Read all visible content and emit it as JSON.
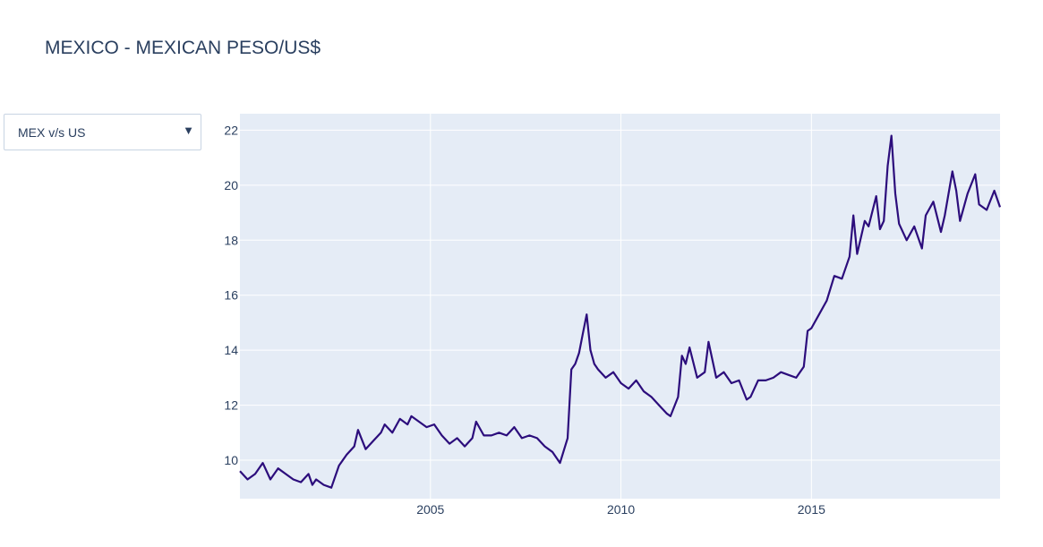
{
  "title": "MEXICO - MEXICAN PESO/US$",
  "dropdown": {
    "selected": "MEX v/s US",
    "arrow_icon": "triangle-down-icon"
  },
  "colors": {
    "line": "#2c0d7c",
    "plot_bg": "#e5ecf6",
    "grid": "#ffffff",
    "text": "#2a3f5f"
  },
  "chart_data": {
    "type": "line",
    "x_tick_labels": [
      "2005",
      "2010",
      "2015"
    ],
    "y_tick_labels": [
      "10",
      "12",
      "14",
      "16",
      "18",
      "20",
      "22"
    ],
    "xlim": [
      2000.0,
      2019.95
    ],
    "ylim": [
      8.6,
      22.6
    ],
    "grid": true,
    "series": [
      {
        "x": [
          2000.0,
          2000.2,
          2000.4,
          2000.6,
          2000.8,
          2000.9,
          2001.0,
          2001.2,
          2001.4,
          2001.6,
          2001.8,
          2001.9,
          2002.0,
          2002.2,
          2002.4,
          2002.6,
          2002.8,
          2003.0,
          2003.1,
          2003.3,
          2003.5,
          2003.7,
          2003.8,
          2004.0,
          2004.2,
          2004.4,
          2004.5,
          2004.7,
          2004.9,
          2005.1,
          2005.3,
          2005.5,
          2005.7,
          2005.9,
          2006.1,
          2006.2,
          2006.4,
          2006.6,
          2006.8,
          2007.0,
          2007.2,
          2007.4,
          2007.6,
          2007.8,
          2008.0,
          2008.2,
          2008.4,
          2008.6,
          2008.7,
          2008.8,
          2008.9,
          2009.0,
          2009.1,
          2009.2,
          2009.3,
          2009.4,
          2009.6,
          2009.8,
          2010.0,
          2010.2,
          2010.4,
          2010.6,
          2010.8,
          2011.0,
          2011.2,
          2011.3,
          2011.5,
          2011.6,
          2011.7,
          2011.8,
          2012.0,
          2012.2,
          2012.3,
          2012.5,
          2012.7,
          2012.9,
          2013.1,
          2013.3,
          2013.4,
          2013.6,
          2013.8,
          2014.0,
          2014.2,
          2014.4,
          2014.6,
          2014.8,
          2014.9,
          2015.0,
          2015.2,
          2015.4,
          2015.6,
          2015.8,
          2016.0,
          2016.1,
          2016.2,
          2016.4,
          2016.5,
          2016.7,
          2016.8,
          2016.9,
          2017.0,
          2017.1,
          2017.2,
          2017.3,
          2017.5,
          2017.7,
          2017.9,
          2018.0,
          2018.2,
          2018.4,
          2018.5,
          2018.7,
          2018.8,
          2018.9,
          2019.1,
          2019.3,
          2019.4,
          2019.6,
          2019.8,
          2019.95
        ],
        "y": [
          9.6,
          9.3,
          9.5,
          9.9,
          9.3,
          9.5,
          9.7,
          9.5,
          9.3,
          9.2,
          9.5,
          9.1,
          9.3,
          9.1,
          9.0,
          9.8,
          10.2,
          10.5,
          11.1,
          10.4,
          10.7,
          11.0,
          11.3,
          11.0,
          11.5,
          11.3,
          11.6,
          11.4,
          11.2,
          11.3,
          10.9,
          10.6,
          10.8,
          10.5,
          10.8,
          11.4,
          10.9,
          10.9,
          11.0,
          10.9,
          11.2,
          10.8,
          10.9,
          10.8,
          10.5,
          10.3,
          9.9,
          10.8,
          13.3,
          13.5,
          13.9,
          14.6,
          15.3,
          14.0,
          13.5,
          13.3,
          13.0,
          13.2,
          12.8,
          12.6,
          12.9,
          12.5,
          12.3,
          12.0,
          11.7,
          11.6,
          12.3,
          13.8,
          13.5,
          14.1,
          13.0,
          13.2,
          14.3,
          13.0,
          13.2,
          12.8,
          12.9,
          12.2,
          12.3,
          12.9,
          12.9,
          13.0,
          13.2,
          13.1,
          13.0,
          13.4,
          14.7,
          14.8,
          15.3,
          15.8,
          16.7,
          16.6,
          17.4,
          18.9,
          17.5,
          18.7,
          18.5,
          19.6,
          18.4,
          18.7,
          20.7,
          21.8,
          19.7,
          18.6,
          18.0,
          18.5,
          17.7,
          18.9,
          19.4,
          18.3,
          18.9,
          20.5,
          19.8,
          18.7,
          19.7,
          20.4,
          19.3,
          19.1,
          19.8,
          19.2
        ]
      }
    ]
  }
}
